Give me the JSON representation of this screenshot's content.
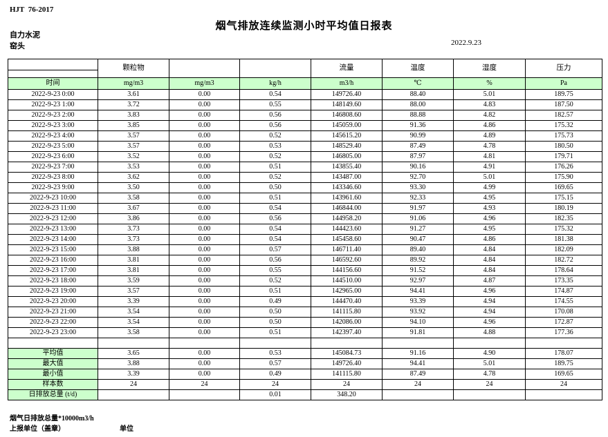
{
  "header": {
    "standard_no": "HJT  76-2017",
    "title": "烟气排放连续监测小时平均值日报表",
    "company": "自力水泥",
    "station": "窑头",
    "date": "2022.9.23"
  },
  "colors": {
    "header_green": "#ccffcc",
    "border": "#000000"
  },
  "table": {
    "group_headers": [
      "",
      "颗粒物",
      "",
      "",
      "流量",
      "温度",
      "湿度",
      "压力"
    ],
    "unit_row": [
      "时间",
      "mg/m3",
      "mg/m3",
      "kg/h",
      "m3/h",
      "℃",
      "%",
      "Pa"
    ],
    "rows": [
      [
        "2022-9-23 0:00",
        "3.61",
        "0.00",
        "0.54",
        "149726.40",
        "88.40",
        "5.01",
        "189.75"
      ],
      [
        "2022-9-23 1:00",
        "3.72",
        "0.00",
        "0.55",
        "148149.60",
        "88.00",
        "4.83",
        "187.50"
      ],
      [
        "2022-9-23 2:00",
        "3.83",
        "0.00",
        "0.56",
        "146808.60",
        "88.88",
        "4.82",
        "182.57"
      ],
      [
        "2022-9-23 3:00",
        "3.85",
        "0.00",
        "0.56",
        "145059.00",
        "91.36",
        "4.86",
        "175.32"
      ],
      [
        "2022-9-23 4:00",
        "3.57",
        "0.00",
        "0.52",
        "145615.20",
        "90.99",
        "4.89",
        "175.73"
      ],
      [
        "2022-9-23 5:00",
        "3.57",
        "0.00",
        "0.53",
        "148529.40",
        "87.49",
        "4.78",
        "180.50"
      ],
      [
        "2022-9-23 6:00",
        "3.52",
        "0.00",
        "0.52",
        "146805.00",
        "87.97",
        "4.81",
        "179.71"
      ],
      [
        "2022-9-23 7:00",
        "3.53",
        "0.00",
        "0.51",
        "143855.40",
        "90.16",
        "4.91",
        "176.26"
      ],
      [
        "2022-9-23 8:00",
        "3.62",
        "0.00",
        "0.52",
        "143487.00",
        "92.70",
        "5.01",
        "175.90"
      ],
      [
        "2022-9-23 9:00",
        "3.50",
        "0.00",
        "0.50",
        "143346.60",
        "93.30",
        "4.99",
        "169.65"
      ],
      [
        "2022-9-23 10:00",
        "3.58",
        "0.00",
        "0.51",
        "143961.60",
        "92.33",
        "4.95",
        "175.15"
      ],
      [
        "2022-9-23 11:00",
        "3.67",
        "0.00",
        "0.54",
        "146844.00",
        "91.97",
        "4.93",
        "180.19"
      ],
      [
        "2022-9-23 12:00",
        "3.86",
        "0.00",
        "0.56",
        "144958.20",
        "91.06",
        "4.96",
        "182.35"
      ],
      [
        "2022-9-23 13:00",
        "3.73",
        "0.00",
        "0.54",
        "144423.60",
        "91.27",
        "4.95",
        "175.32"
      ],
      [
        "2022-9-23 14:00",
        "3.73",
        "0.00",
        "0.54",
        "145458.60",
        "90.47",
        "4.86",
        "181.38"
      ],
      [
        "2022-9-23 15:00",
        "3.88",
        "0.00",
        "0.57",
        "146711.40",
        "89.40",
        "4.84",
        "182.09"
      ],
      [
        "2022-9-23 16:00",
        "3.81",
        "0.00",
        "0.56",
        "146592.60",
        "89.92",
        "4.84",
        "182.72"
      ],
      [
        "2022-9-23 17:00",
        "3.81",
        "0.00",
        "0.55",
        "144156.60",
        "91.52",
        "4.84",
        "178.64"
      ],
      [
        "2022-9-23 18:00",
        "3.59",
        "0.00",
        "0.52",
        "144510.00",
        "92.97",
        "4.87",
        "173.35"
      ],
      [
        "2022-9-23 19:00",
        "3.57",
        "0.00",
        "0.51",
        "142965.00",
        "94.41",
        "4.96",
        "174.87"
      ],
      [
        "2022-9-23 20:00",
        "3.39",
        "0.00",
        "0.49",
        "144470.40",
        "93.39",
        "4.94",
        "174.55"
      ],
      [
        "2022-9-23 21:00",
        "3.54",
        "0.00",
        "0.50",
        "141115.80",
        "93.92",
        "4.94",
        "170.08"
      ],
      [
        "2022-9-23 22:00",
        "3.54",
        "0.00",
        "0.50",
        "142086.00",
        "94.10",
        "4.96",
        "172.87"
      ],
      [
        "2022-9-23 23:00",
        "3.58",
        "0.00",
        "0.51",
        "142397.40",
        "91.81",
        "4.88",
        "177.36"
      ]
    ],
    "summary_rows": [
      [
        "平均值",
        "3.65",
        "0.00",
        "0.53",
        "145084.73",
        "91.16",
        "4.90",
        "178.07"
      ],
      [
        "最大值",
        "3.88",
        "0.00",
        "0.57",
        "149726.40",
        "94.41",
        "5.01",
        "189.75"
      ],
      [
        "最小值",
        "3.39",
        "0.00",
        "0.49",
        "141115.80",
        "87.49",
        "4.78",
        "169.65"
      ],
      [
        "样本数",
        "24",
        "24",
        "24",
        "24",
        "24",
        "24",
        "24"
      ],
      [
        "日排放总量 (t/d)",
        "",
        "",
        "0.01",
        "348.20",
        "",
        "",
        ""
      ]
    ]
  },
  "footer": {
    "note": "烟气日排放总量*10000m3/h",
    "report_unit_label": "上报单位（盖章）",
    "unit_label": "单位"
  }
}
